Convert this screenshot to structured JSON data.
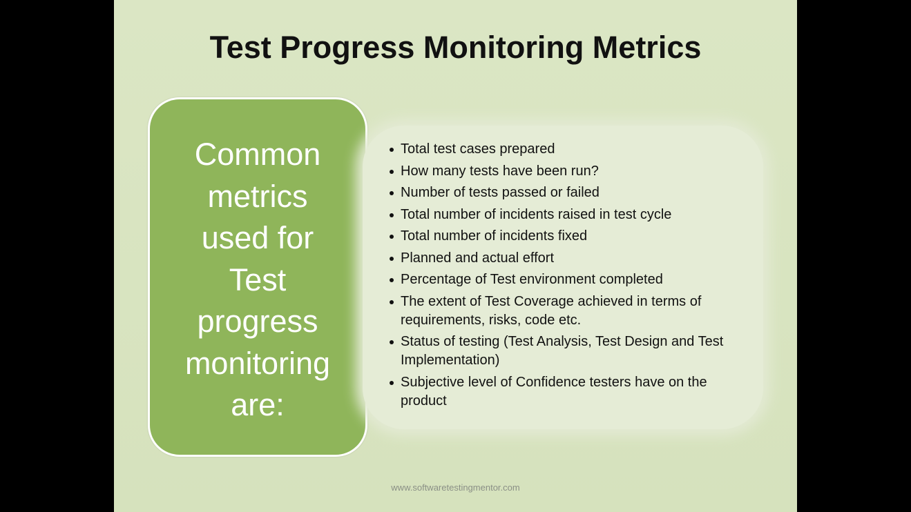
{
  "slide": {
    "title": "Test Progress Monitoring Metrics",
    "left_box": {
      "lines": [
        "Common",
        "metrics",
        "used for",
        "Test",
        "progress",
        "monitoring",
        "are:"
      ]
    },
    "bullets": [
      "Total test cases prepared",
      "How many tests have been run?",
      "Number of tests passed or failed",
      "Total number of incidents raised in test cycle",
      "Total number of incidents fixed",
      "Planned and actual effort",
      "Percentage of Test environment completed",
      "The extent of Test Coverage achieved in terms of requirements, risks, code etc.",
      "Status of testing (Test Analysis, Test Design and Test Implementation)",
      "Subjective level of Confidence testers have on the product"
    ],
    "footer": "www.softwaretestingmentor.com"
  },
  "colors": {
    "slide_background": "#d9e5c1",
    "left_box": "#8fb55a",
    "right_box": "#e5ecd6",
    "letterbox": "#000000"
  }
}
